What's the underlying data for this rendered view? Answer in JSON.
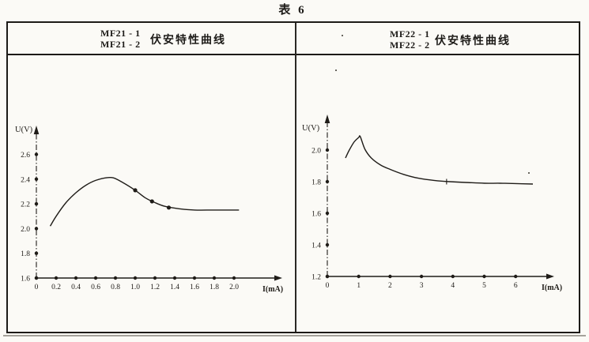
{
  "page_title": "表 6",
  "colors": {
    "ink": "#1f1c18",
    "paper": "#fbfaf6"
  },
  "table": {
    "left_header": {
      "model_1": "MF21 - 1",
      "model_2": "MF21 - 2",
      "label": "伏安特性曲线"
    },
    "right_header": {
      "model_1": "MF22 - 1",
      "model_2": "MF22 - 2",
      "label": "伏安特性曲线"
    }
  },
  "chart_data": [
    {
      "type": "line",
      "title": "MF21-1 / MF21-2 伏安特性曲线",
      "xlabel": "I(mA)",
      "ylabel": "U(V)",
      "xlim": [
        0,
        2.2
      ],
      "ylim": [
        1.6,
        2.8
      ],
      "grid": false,
      "legend_position": "none",
      "xticks": [
        0,
        0.2,
        0.4,
        0.6,
        0.8,
        1.0,
        1.2,
        1.4,
        1.6,
        1.8,
        2.0
      ],
      "xtick_labels": [
        "0",
        "0.2",
        "0.4",
        "0.6",
        "0.8",
        "1.0",
        "1.2",
        "1.4",
        "1.6",
        "1.8",
        "2.0"
      ],
      "yticks": [
        1.6,
        1.8,
        2.0,
        2.2,
        2.4,
        2.6
      ],
      "ytick_labels": [
        "1.6",
        "1.8",
        "2.0",
        "2.2",
        "2.4",
        "2.6"
      ],
      "series": [
        {
          "name": "MF21 伏安特性曲线",
          "x": [
            0.14,
            0.2,
            0.3,
            0.4,
            0.5,
            0.6,
            0.7,
            0.78,
            0.88,
            1.0,
            1.1,
            1.2,
            1.3,
            1.45,
            1.6,
            1.8,
            2.05
          ],
          "y": [
            2.02,
            2.1,
            2.21,
            2.29,
            2.35,
            2.39,
            2.41,
            2.41,
            2.37,
            2.31,
            2.25,
            2.21,
            2.18,
            2.16,
            2.15,
            2.15,
            2.15
          ]
        }
      ],
      "point_markers": [
        [
          1.0,
          2.31
        ],
        [
          1.17,
          2.22
        ],
        [
          1.34,
          2.17
        ]
      ],
      "tick_markers": []
    },
    {
      "type": "line",
      "title": "MF22-1 / MF22-2 伏安特性曲线",
      "xlabel": "I(mA)",
      "ylabel": "U(V)",
      "xlim": [
        0,
        7.2
      ],
      "ylim": [
        1.2,
        2.2
      ],
      "grid": false,
      "legend_position": "none",
      "xticks": [
        0,
        1,
        2,
        3,
        4,
        5,
        6
      ],
      "xtick_labels": [
        "0",
        "1",
        "2",
        "3",
        "4",
        "5",
        "6"
      ],
      "yticks": [
        1.2,
        1.4,
        1.6,
        1.8,
        2.0
      ],
      "ytick_labels": [
        "1.2",
        "1.4",
        "1.6",
        "1.8",
        "2.0"
      ],
      "series": [
        {
          "name": "MF22 伏安特性曲线",
          "x": [
            0.58,
            0.7,
            0.85,
            1.0,
            1.05,
            1.2,
            1.4,
            1.7,
            2.0,
            2.4,
            2.9,
            3.4,
            3.9,
            4.4,
            5.0,
            5.5,
            6.0,
            6.55
          ],
          "y": [
            1.95,
            2.0,
            2.05,
            2.08,
            2.085,
            2.005,
            1.95,
            1.905,
            1.878,
            1.848,
            1.822,
            1.808,
            1.8,
            1.795,
            1.79,
            1.79,
            1.788,
            1.785
          ]
        }
      ],
      "point_markers": [],
      "tick_markers": [
        [
          3.8,
          1.8
        ]
      ]
    }
  ]
}
